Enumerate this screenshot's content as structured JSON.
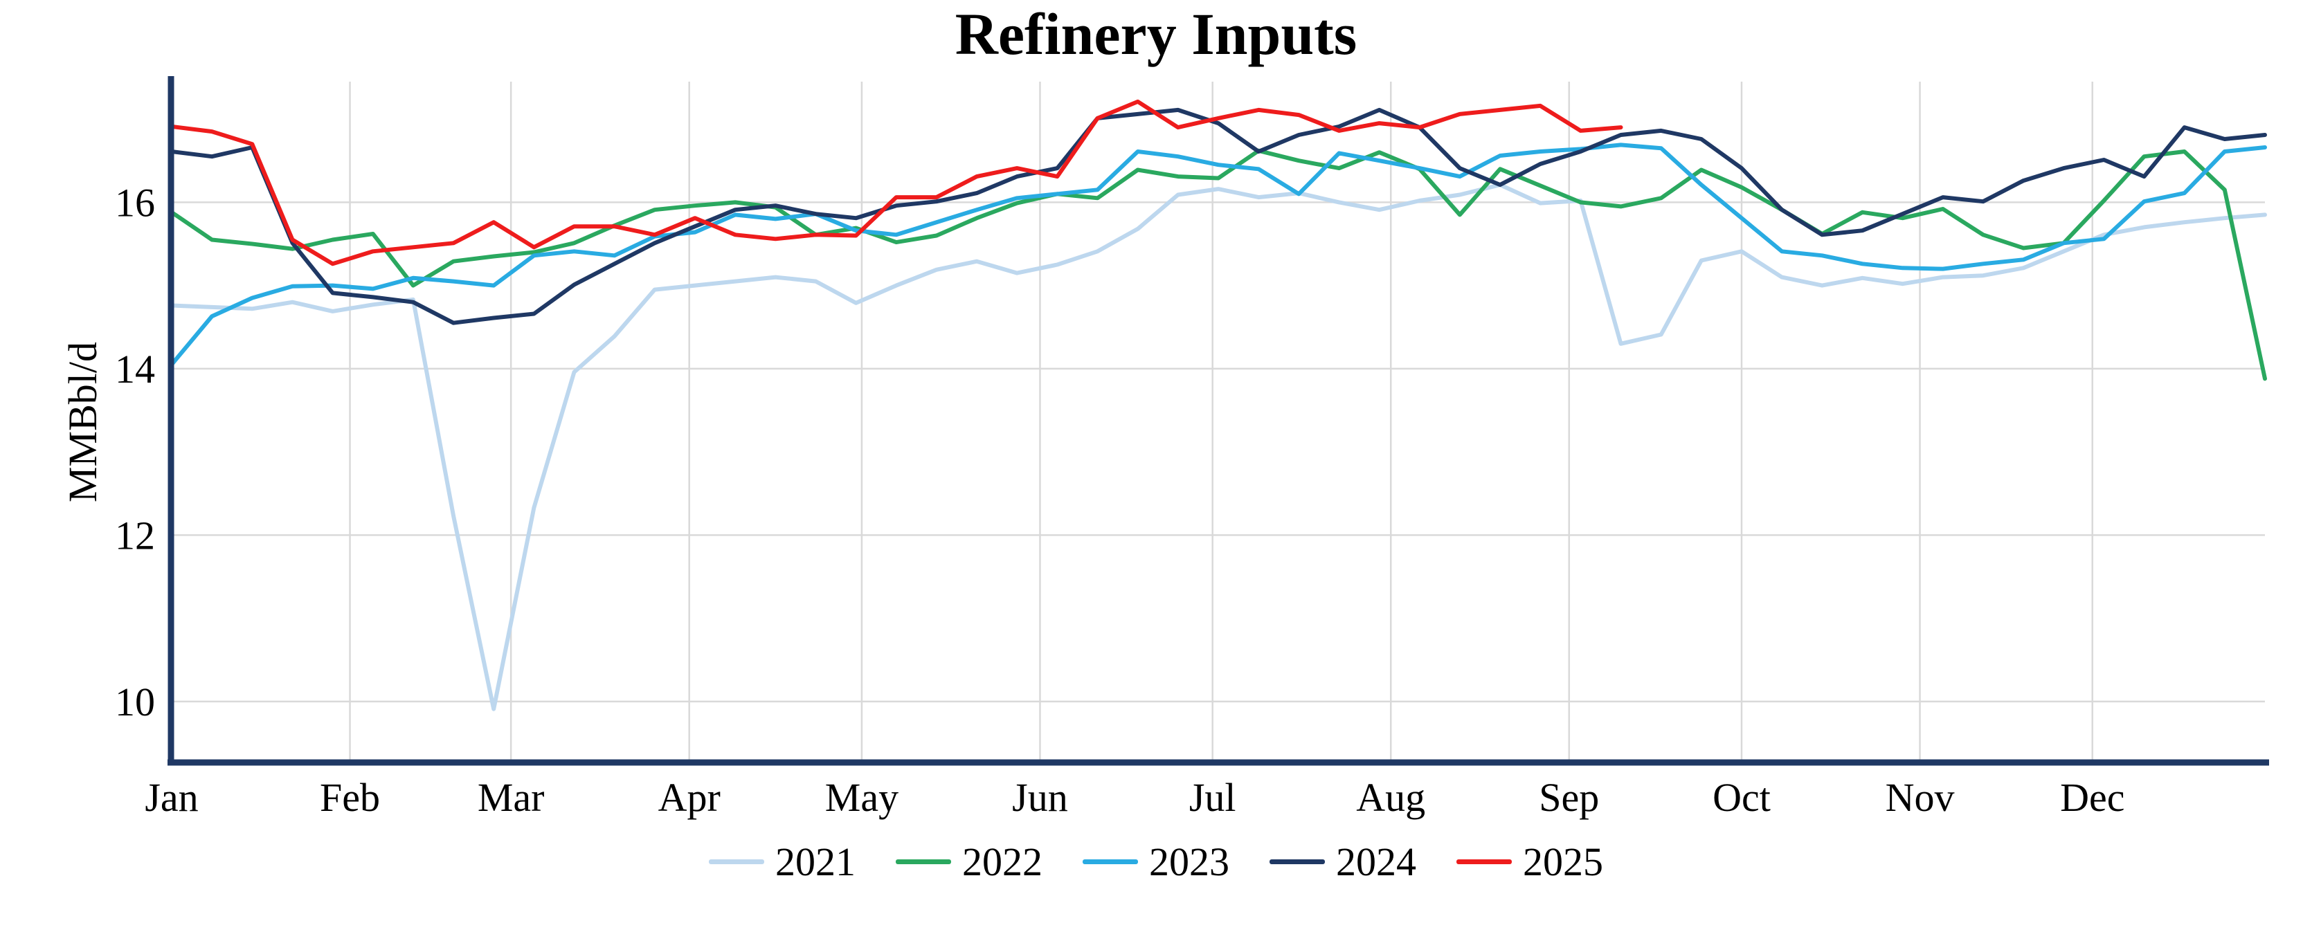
{
  "chart_data": {
    "type": "line",
    "title": "Refinery Inputs",
    "xlabel": "",
    "ylabel": "MMBbl/d",
    "ylim": [
      9.3,
      17.45
    ],
    "yticks": [
      10,
      12,
      14,
      16
    ],
    "grid": true,
    "grid_color": "#d9d9d9",
    "axis_color": "#1f3864",
    "legend_position": "bottom",
    "x_unit": "weekly observations, Jan through Dec",
    "month_labels": [
      "Jan",
      "Feb",
      "Mar",
      "Apr",
      "May",
      "Jun",
      "Jul",
      "Aug",
      "Sep",
      "Oct",
      "Nov",
      "Dec"
    ],
    "month_start_days": [
      0,
      31,
      59,
      90,
      120,
      151,
      181,
      212,
      243,
      273,
      304,
      334
    ],
    "days_in_year": 364,
    "series": [
      {
        "name": "2021",
        "color": "#bdd7ee",
        "values": [
          14.76,
          14.74,
          14.72,
          14.8,
          14.69,
          14.77,
          14.83,
          12.23,
          9.91,
          12.33,
          13.96,
          14.39,
          14.95,
          15.0,
          15.05,
          15.1,
          15.05,
          14.79,
          15.0,
          15.19,
          15.29,
          15.15,
          15.25,
          15.41,
          15.68,
          16.09,
          16.16,
          16.06,
          16.11,
          16.0,
          15.91,
          16.02,
          16.09,
          16.21,
          15.99,
          16.02,
          14.3,
          14.41,
          15.3,
          15.41,
          15.1,
          15.0,
          15.09,
          15.02,
          15.1,
          15.12,
          15.21,
          15.41,
          15.61,
          15.7,
          15.76,
          15.81,
          15.85
        ]
      },
      {
        "name": "2022",
        "color": "#2aa85f",
        "values": [
          15.88,
          15.55,
          15.5,
          15.44,
          15.55,
          15.62,
          15.0,
          15.29,
          15.35,
          15.4,
          15.51,
          15.72,
          15.91,
          15.96,
          16.0,
          15.94,
          15.61,
          15.69,
          15.52,
          15.6,
          15.81,
          15.99,
          16.1,
          16.05,
          16.39,
          16.31,
          16.29,
          16.62,
          16.5,
          16.41,
          16.6,
          16.4,
          15.85,
          16.4,
          16.2,
          16.0,
          15.95,
          16.05,
          16.39,
          16.18,
          15.91,
          15.62,
          15.88,
          15.81,
          15.92,
          15.61,
          15.45,
          15.51,
          16.02,
          16.55,
          16.61,
          16.15,
          13.88
        ]
      },
      {
        "name": "2023",
        "color": "#29abe2",
        "values": [
          14.05,
          14.63,
          14.85,
          14.99,
          15.0,
          14.96,
          15.09,
          15.05,
          15.0,
          15.36,
          15.41,
          15.36,
          15.59,
          15.64,
          15.85,
          15.8,
          15.86,
          15.66,
          15.61,
          15.76,
          15.91,
          16.05,
          16.1,
          16.15,
          16.61,
          16.55,
          16.45,
          16.4,
          16.1,
          16.59,
          16.5,
          16.41,
          16.31,
          16.56,
          16.61,
          16.64,
          16.69,
          16.65,
          16.21,
          15.81,
          15.41,
          15.36,
          15.26,
          15.21,
          15.2,
          15.26,
          15.31,
          15.51,
          15.56,
          16.01,
          16.11,
          16.61,
          16.66
        ]
      },
      {
        "name": "2024",
        "color": "#1f3864",
        "values": [
          16.61,
          16.55,
          16.66,
          15.51,
          14.91,
          14.86,
          14.8,
          14.55,
          14.61,
          14.66,
          15.01,
          15.26,
          15.51,
          15.71,
          15.91,
          15.96,
          15.86,
          15.81,
          15.96,
          16.01,
          16.11,
          16.31,
          16.41,
          17.01,
          17.06,
          17.11,
          16.95,
          16.61,
          16.81,
          16.91,
          17.11,
          16.9,
          16.41,
          16.21,
          16.46,
          16.61,
          16.81,
          16.86,
          16.76,
          16.41,
          15.91,
          15.61,
          15.66,
          15.86,
          16.06,
          16.01,
          16.26,
          16.41,
          16.51,
          16.31,
          16.9,
          16.76,
          16.81
        ]
      },
      {
        "name": "2025",
        "color": "#ee1c1c",
        "values": [
          16.91,
          16.85,
          16.7,
          15.55,
          15.26,
          15.41,
          15.46,
          15.51,
          15.76,
          15.46,
          15.71,
          15.71,
          15.61,
          15.81,
          15.61,
          15.56,
          15.61,
          15.6,
          16.06,
          16.06,
          16.31,
          16.41,
          16.31,
          17.01,
          17.21,
          16.9,
          17.01,
          17.11,
          17.05,
          16.86,
          16.95,
          16.9,
          17.06,
          17.11,
          17.16,
          16.86,
          16.9
        ]
      }
    ]
  }
}
